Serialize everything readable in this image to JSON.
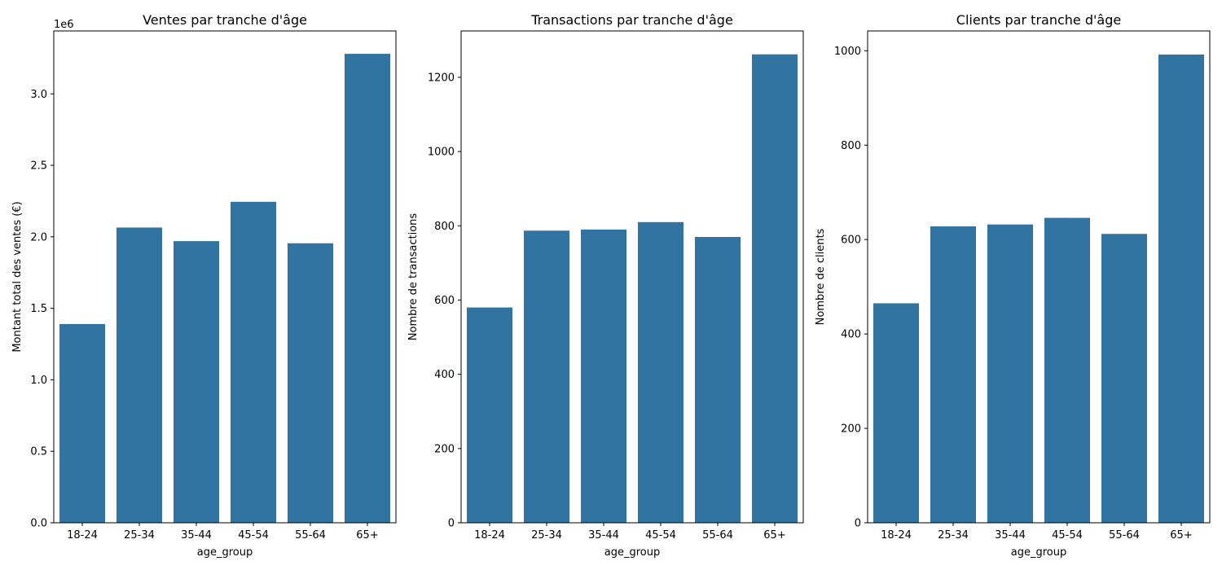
{
  "figure": {
    "background": "#ffffff",
    "bar_color": "#3274a1"
  },
  "chart_data": [
    {
      "type": "bar",
      "title": "Ventes par tranche d'âge",
      "xlabel": "age_group",
      "ylabel": "Montant total des ventes (€)",
      "offset_text": "1e6",
      "categories": [
        "18-24",
        "25-34",
        "35-44",
        "45-54",
        "55-64",
        "65+"
      ],
      "values": [
        1390000,
        2065000,
        1970000,
        2245000,
        1955000,
        3280000
      ],
      "ylim": [
        0,
        3440000
      ],
      "yticks": [
        0,
        500000,
        1000000,
        1500000,
        2000000,
        2500000,
        3000000
      ],
      "ytick_labels": [
        "0.0",
        "0.5",
        "1.0",
        "1.5",
        "2.0",
        "2.5",
        "3.0"
      ],
      "grid": false,
      "color": "#3274a1"
    },
    {
      "type": "bar",
      "title": "Transactions par tranche d'âge",
      "xlabel": "age_group",
      "ylabel": "Nombre de transactions",
      "categories": [
        "18-24",
        "25-34",
        "35-44",
        "45-54",
        "55-64",
        "65+"
      ],
      "values": [
        580,
        787,
        790,
        810,
        770,
        1262
      ],
      "ylim": [
        0,
        1325
      ],
      "yticks": [
        0,
        200,
        400,
        600,
        800,
        1000,
        1200
      ],
      "ytick_labels": [
        "0",
        "200",
        "400",
        "600",
        "800",
        "1000",
        "1200"
      ],
      "grid": false,
      "color": "#3274a1"
    },
    {
      "type": "bar",
      "title": "Clients par tranche d'âge",
      "xlabel": "age_group",
      "ylabel": "Nombre de clients",
      "categories": [
        "18-24",
        "25-34",
        "35-44",
        "45-54",
        "55-64",
        "65+"
      ],
      "values": [
        465,
        628,
        632,
        646,
        612,
        992
      ],
      "ylim": [
        0,
        1042
      ],
      "yticks": [
        0,
        200,
        400,
        600,
        800,
        1000
      ],
      "ytick_labels": [
        "0",
        "200",
        "400",
        "600",
        "800",
        "1000"
      ],
      "grid": false,
      "color": "#3274a1"
    }
  ]
}
